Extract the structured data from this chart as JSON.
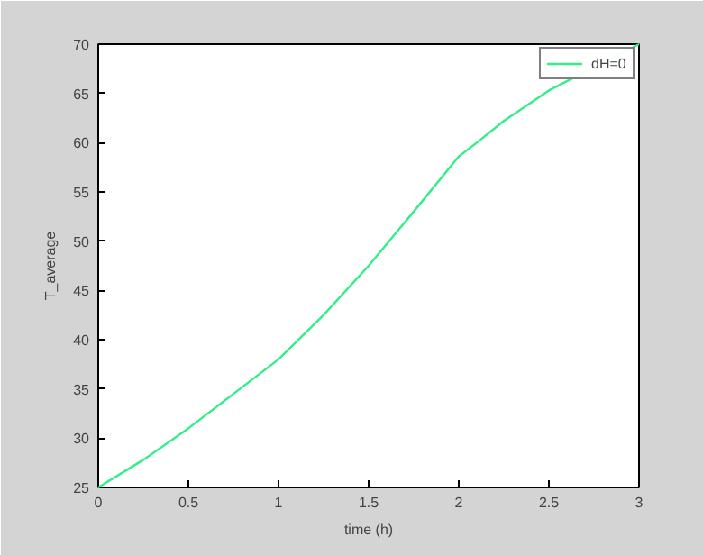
{
  "chart_data": {
    "type": "line",
    "xlabel": "time (h)",
    "ylabel": "T_average",
    "x": [
      0,
      0.25,
      0.5,
      0.75,
      1,
      1.25,
      1.5,
      1.75,
      2,
      2.1,
      2.25,
      2.5,
      3
    ],
    "series": [
      {
        "name": "dH=0",
        "color": "#33ee88",
        "values": [
          25,
          27.8,
          31,
          34.5,
          38,
          42.5,
          47.5,
          53,
          58.6,
          60,
          62.2,
          65.3,
          70
        ]
      }
    ],
    "xlim": [
      0,
      3
    ],
    "ylim": [
      25,
      70
    ],
    "xticks": [
      0,
      0.5,
      1,
      1.5,
      2,
      2.5,
      3
    ],
    "yticks": [
      25,
      30,
      35,
      40,
      45,
      50,
      55,
      60,
      65,
      70
    ],
    "grid": false,
    "legend": "top right",
    "marker": "none",
    "line_style": "solid"
  }
}
